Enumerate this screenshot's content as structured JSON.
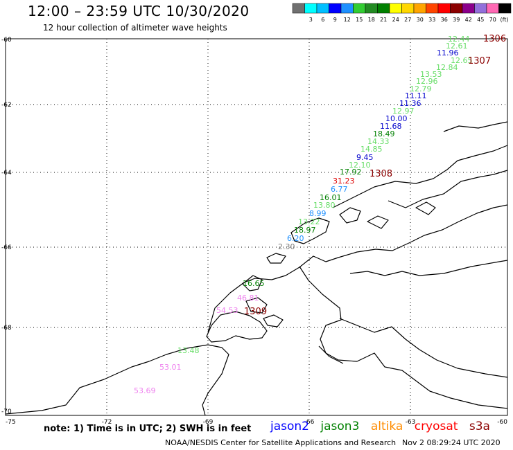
{
  "header": {
    "title": "12:00 – 23:59 UTC 10/30/2020",
    "subtitle": "12 hour collection of altimeter wave heights"
  },
  "legend": {
    "colors": [
      "#707070",
      "#00ffff",
      "#00bfff",
      "#0000ff",
      "#1e90ff",
      "#32cd32",
      "#228b22",
      "#008000",
      "#ffff00",
      "#ffd700",
      "#ffa500",
      "#ff4500",
      "#ff0000",
      "#8b0000",
      "#8b008b",
      "#9370db",
      "#ff69b4",
      "#000000"
    ],
    "labels": [
      "3",
      "6",
      "9",
      "12",
      "15",
      "18",
      "21",
      "24",
      "27",
      "30",
      "33",
      "36",
      "39",
      "42",
      "45",
      "70"
    ],
    "unit": "(ft)"
  },
  "axes": {
    "lat_labels": [
      "-60",
      "-62",
      "-64",
      "-66",
      "-68",
      "-70"
    ],
    "lon_labels": [
      "-75",
      "-72",
      "-69",
      "-66",
      "-63",
      "-60"
    ]
  },
  "observations": [
    {
      "text": "12.44",
      "color": "#66dd66"
    },
    {
      "text": "12.61",
      "color": "#66dd66"
    },
    {
      "text": "11.96",
      "color": "#0000cc"
    },
    {
      "text": "12.65",
      "color": "#66dd66"
    },
    {
      "text": "12.84",
      "color": "#66dd66"
    },
    {
      "text": "13.53",
      "color": "#66dd66"
    },
    {
      "text": "12.96",
      "color": "#66dd66"
    },
    {
      "text": "12.79",
      "color": "#66dd66"
    },
    {
      "text": "11.11",
      "color": "#0000cc"
    },
    {
      "text": "11.36",
      "color": "#0000cc"
    },
    {
      "text": "12.97",
      "color": "#66dd66"
    },
    {
      "text": "10.00",
      "color": "#0000cc"
    },
    {
      "text": "11.68",
      "color": "#0000cc"
    },
    {
      "text": "18.49",
      "color": "#008000"
    },
    {
      "text": "14.33",
      "color": "#66dd66"
    },
    {
      "text": "14.85",
      "color": "#66dd66"
    },
    {
      "text": "9.45",
      "color": "#0000cc"
    },
    {
      "text": "12.10",
      "color": "#66dd66"
    },
    {
      "text": "17.92",
      "color": "#008000"
    },
    {
      "text": "31.23",
      "color": "#dd0000"
    },
    {
      "text": "6.77",
      "color": "#1e90ff"
    },
    {
      "text": "16.01",
      "color": "#008000"
    },
    {
      "text": "13.80",
      "color": "#66dd66"
    },
    {
      "text": "8.99",
      "color": "#1e90ff"
    },
    {
      "text": "13.22",
      "color": "#66dd66"
    },
    {
      "text": "18.97",
      "color": "#008000"
    },
    {
      "text": "6.20",
      "color": "#1e90ff"
    },
    {
      "text": "2.30",
      "color": "#808080"
    },
    {
      "text": "16.65",
      "color": "#008000"
    },
    {
      "text": "46.81",
      "color": "#ee82ee"
    },
    {
      "text": "54.53",
      "color": "#ee82ee"
    },
    {
      "text": "13.48",
      "color": "#66dd66"
    },
    {
      "text": "53.01",
      "color": "#ee82ee"
    },
    {
      "text": "53.69",
      "color": "#ee82ee"
    }
  ],
  "pass_times": [
    "1306",
    "1307",
    "1308",
    "1309"
  ],
  "footer": {
    "note": "note: 1) Time is in UTC; 2) SWH is in feet",
    "satellites": [
      {
        "name": "jason2",
        "color": "#0000ff"
      },
      {
        "name": "jason3",
        "color": "#008000"
      },
      {
        "name": "altika",
        "color": "#ff8c00"
      },
      {
        "name": "cryosat",
        "color": "#ff0000"
      },
      {
        "name": "s3a",
        "color": "#8b0000"
      }
    ],
    "credit": "NOAA/NESDIS Center for Satellite Applications and Research",
    "timestamp": "Nov  2 08:29:24 UTC 2020"
  }
}
